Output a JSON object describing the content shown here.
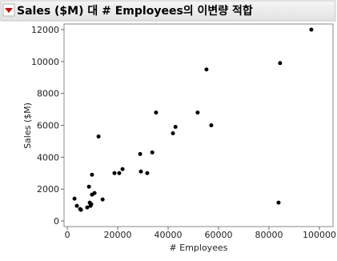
{
  "chart_data": {
    "type": "scatter",
    "title": "Sales ($M) 대 # Employees의 이변량 적합",
    "x_label": "# Employees",
    "y_label": "Sales ($M)",
    "color": "#000000",
    "x": [
      2860,
      3800,
      5100,
      5400,
      7900,
      8600,
      8900,
      9200,
      9500,
      9800,
      9800,
      10800,
      12400,
      14000,
      18700,
      20600,
      21900,
      28900,
      29200,
      31700,
      33700,
      35200,
      41900,
      42900,
      51700,
      55200,
      57100,
      83800,
      84400,
      96800
    ],
    "values": [
      1400,
      950,
      750,
      700,
      850,
      2150,
      1150,
      950,
      1050,
      2900,
      1650,
      1750,
      5300,
      1350,
      3000,
      3000,
      3250,
      4200,
      3100,
      3000,
      4300,
      6800,
      5500,
      5900,
      6800,
      9500,
      6000,
      1150,
      9900,
      12000
    ],
    "xlim": [
      -1300,
      105400
    ],
    "ylim": [
      -350,
      12350
    ],
    "xticks": [
      0,
      20000,
      40000,
      60000,
      80000,
      100000
    ],
    "yticks": [
      0,
      2000,
      4000,
      6000,
      8000,
      10000,
      12000
    ]
  }
}
